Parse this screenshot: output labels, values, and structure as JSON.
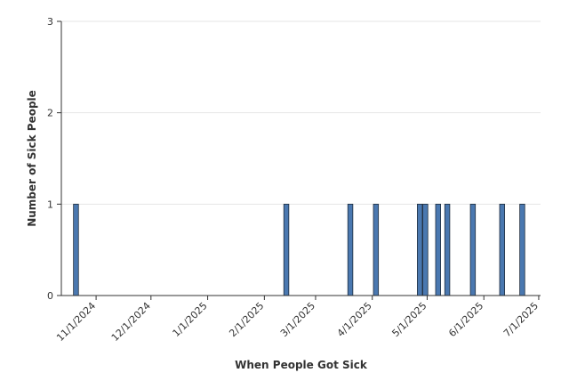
{
  "chart_data": {
    "type": "bar",
    "title": "",
    "xlabel": "When People Got Sick",
    "ylabel": "Number of Sick People",
    "x_tick_labels": [
      "11/1/2024",
      "12/1/2024",
      "1/1/2025",
      "2/1/2025",
      "3/1/2025",
      "4/1/2025",
      "5/1/2025",
      "6/1/2025",
      "7/1/2025"
    ],
    "y_tick_labels": [
      "0",
      "1",
      "2",
      "3"
    ],
    "ylim": [
      0,
      3
    ],
    "xlim": [
      "2024-10-13",
      "2025-07-02"
    ],
    "grid": true,
    "bar_color": "#4a78b0",
    "series": [
      {
        "values": [
          {
            "x": "2024-10-21",
            "y": 1
          },
          {
            "x": "2025-02-13",
            "y": 1
          },
          {
            "x": "2025-03-20",
            "y": 1
          },
          {
            "x": "2025-04-03",
            "y": 1
          },
          {
            "x": "2025-04-27",
            "y": 1
          },
          {
            "x": "2025-04-30",
            "y": 1
          },
          {
            "x": "2025-05-07",
            "y": 1
          },
          {
            "x": "2025-05-12",
            "y": 1
          },
          {
            "x": "2025-05-26",
            "y": 1
          },
          {
            "x": "2025-06-11",
            "y": 1
          },
          {
            "x": "2025-06-22",
            "y": 1
          }
        ]
      }
    ]
  }
}
